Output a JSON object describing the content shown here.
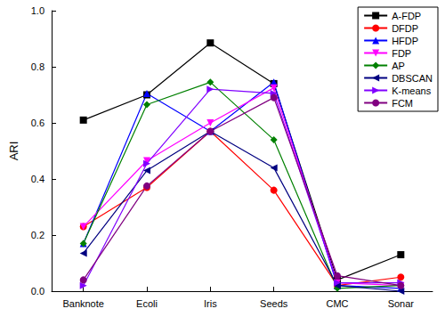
{
  "chart_data": {
    "type": "line",
    "y_label": "ARI",
    "categories": [
      "Banknote",
      "Ecoli",
      "Iris",
      "Seeds",
      "CMC",
      "Sonar"
    ],
    "ylim": [
      0,
      1
    ],
    "yticks": [
      {
        "value": 0,
        "label": "0.0"
      },
      0.2,
      0.4,
      0.6,
      0.8,
      {
        "value": 1,
        "label": "1.0"
      }
    ],
    "grid": false,
    "legend": "upper right",
    "series": [
      {
        "name": "A-FDP",
        "color": "#000000",
        "marker": "square",
        "values": [
          0.61,
          0.7,
          0.885,
          0.74,
          0.04,
          0.13
        ]
      },
      {
        "name": "DFDP",
        "color": "#ff0000",
        "marker": "circle",
        "values": [
          0.23,
          0.37,
          0.57,
          0.36,
          0.02,
          0.05
        ]
      },
      {
        "name": "HFDP",
        "color": "#0000ff",
        "marker": "triangle",
        "values": [
          0.17,
          0.705,
          0.57,
          0.745,
          0.02,
          0.01
        ]
      },
      {
        "name": "FDP",
        "color": "#ff00ff",
        "marker": "triangle_down",
        "values": [
          0.23,
          0.465,
          0.6,
          0.725,
          0.03,
          0.02
        ]
      },
      {
        "name": "AP",
        "color": "#008000",
        "marker": "diamond",
        "values": [
          0.17,
          0.665,
          0.745,
          0.54,
          0.01,
          0.02
        ]
      },
      {
        "name": "DBSCAN",
        "color": "#000080",
        "marker": "triangle_left",
        "values": [
          0.135,
          0.43,
          0.57,
          0.44,
          0.02,
          0.0
        ]
      },
      {
        "name": "K-means",
        "color": "#8000ff",
        "marker": "triangle_right",
        "values": [
          0.02,
          0.455,
          0.72,
          0.705,
          0.03,
          0.03
        ]
      },
      {
        "name": "FCM",
        "color": "#800080",
        "marker": "circle",
        "values": [
          0.04,
          0.375,
          0.57,
          0.69,
          0.055,
          0.02
        ]
      }
    ]
  }
}
